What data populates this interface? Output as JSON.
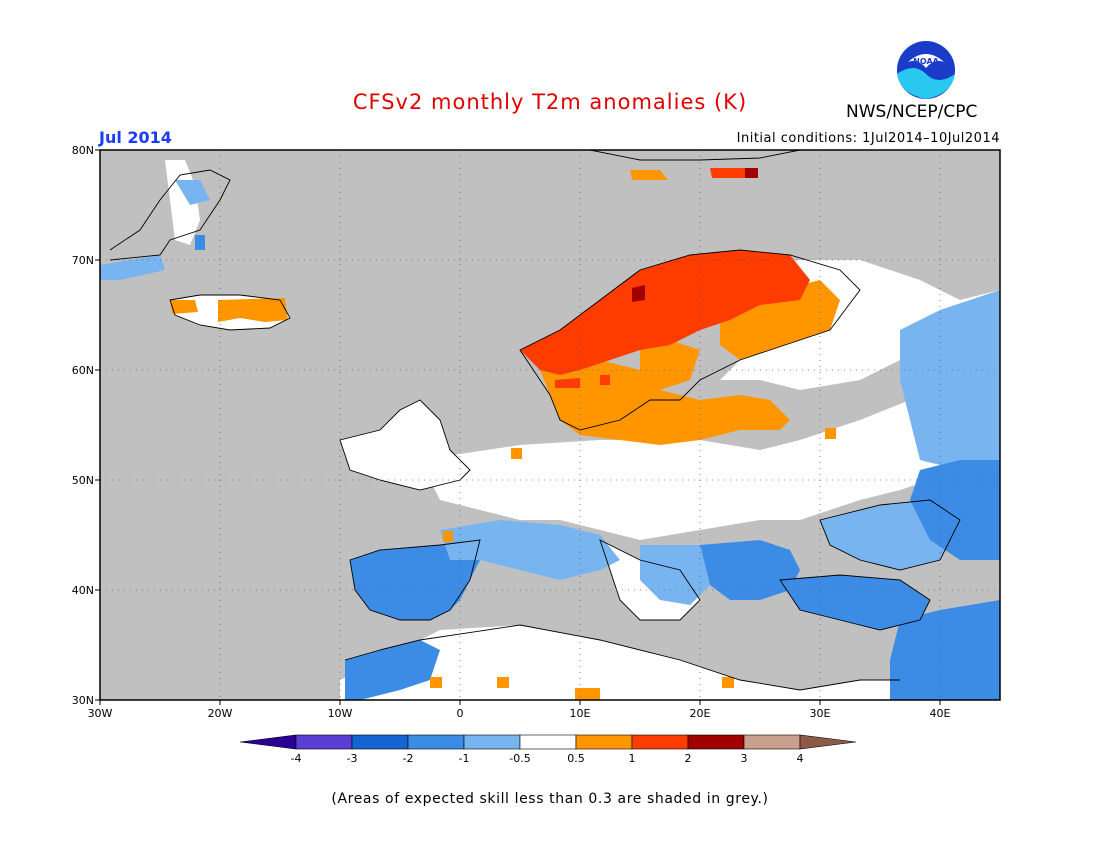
{
  "title": "CFSv2 monthly T2m anomalies (K)",
  "org": "NWS/NCEP/CPC",
  "logo_text": "NOAA",
  "month": "Jul 2014",
  "initial_conditions": "Initial conditions: 1Jul2014–10Jul2014",
  "note": "(Areas of expected skill less than 0.3 are shaded in grey.)",
  "colors": {
    "ocean": "#c0c0c0",
    "land_low_skill": "#c0c0c0",
    "neutral": "#ffffff",
    "coast": "#000000"
  },
  "map": {
    "lon_range": [
      -30,
      45
    ],
    "lat_range": [
      30,
      80
    ],
    "lon_ticks": [
      "30W",
      "20W",
      "10W",
      "0",
      "10E",
      "20E",
      "30E",
      "40E"
    ],
    "lat_ticks": [
      "30N",
      "40N",
      "50N",
      "60N",
      "70N",
      "80N"
    ]
  },
  "colorbar": {
    "labels": [
      "-4",
      "-3",
      "-2",
      "-1",
      "-0.5",
      "0.5",
      "1",
      "2",
      "3",
      "4"
    ],
    "colors": [
      "#2a0094",
      "#5a3fd4",
      "#1464d2",
      "#3c8ce6",
      "#78b4f0",
      "#ffffff",
      "#ff9600",
      "#ff3c00",
      "#a00000",
      "#c8a08c",
      "#8c5a46"
    ]
  },
  "anomaly_regions": [
    {
      "name": "scandinavia-warm",
      "level": "1 to 2"
    },
    {
      "name": "baltic-warm",
      "level": "0.5 to 1"
    },
    {
      "name": "iberia-cool",
      "level": "-1 to -2"
    },
    {
      "name": "eastern-europe-cool",
      "level": "-1 to -2"
    },
    {
      "name": "iceland-warm",
      "level": "0.5 to 1"
    }
  ]
}
